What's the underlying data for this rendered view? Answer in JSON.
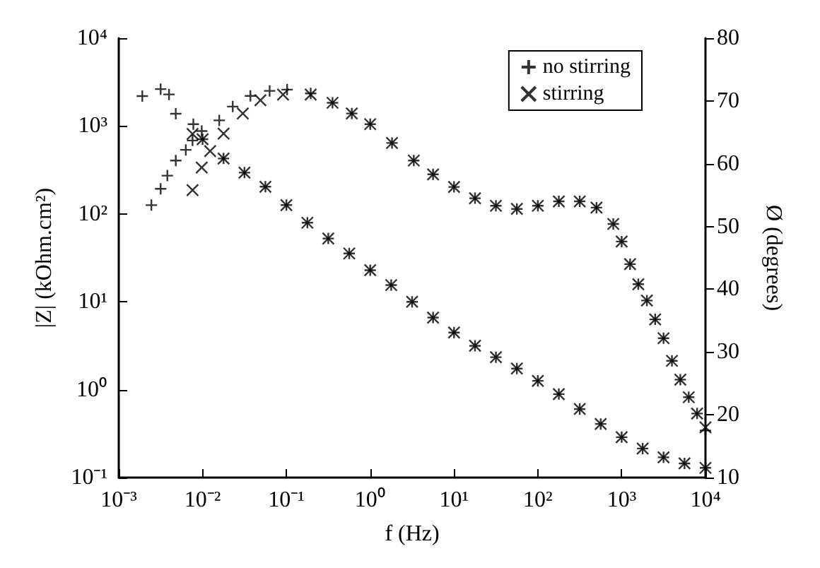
{
  "chart_data": {
    "type": "scatter",
    "xlabel": "f (Hz)",
    "ylabel": "|Z| (kOhm.cm²)",
    "y2label": "Ø (degrees)",
    "log": "xy",
    "grid": false,
    "legend": "top right",
    "xlim": [
      0.001,
      10000
    ],
    "xticks": [
      {
        "value": 0.001,
        "label": "10⁻³"
      },
      {
        "value": 0.01,
        "label": "10⁻²"
      },
      {
        "value": 0.1,
        "label": "10⁻¹"
      },
      {
        "value": 1,
        "label": "10⁰"
      },
      {
        "value": 10,
        "label": "10¹"
      },
      {
        "value": 100,
        "label": "10²"
      },
      {
        "value": 1000,
        "label": "10³"
      },
      {
        "value": 10000,
        "label": "10⁴"
      }
    ],
    "ylim": [
      0.1,
      10000
    ],
    "yticks": [
      {
        "value": 0.1,
        "label": "10⁻¹"
      },
      {
        "value": 1,
        "label": "10⁰"
      },
      {
        "value": 10,
        "label": "10¹"
      },
      {
        "value": 100,
        "label": "10²"
      },
      {
        "value": 1000,
        "label": "10³"
      },
      {
        "value": 10000,
        "label": "10⁴"
      }
    ],
    "y2lim": [
      10,
      80
    ],
    "y2ticks": [
      10,
      20,
      30,
      40,
      50,
      60,
      70,
      80
    ],
    "series": [
      {
        "name": "no stirring",
        "color": "#000000",
        "marker": "plus",
        "x": [
          0.00191,
          0.00316,
          0.00398,
          0.00479,
          0.00776,
          0.01,
          0.0178,
          0.0316,
          0.0562,
          0.1,
          0.178,
          0.316,
          0.562,
          1,
          1.78,
          3.16,
          5.62,
          10,
          17.8,
          31.6,
          56.2,
          100,
          178,
          316,
          562,
          1000,
          1780,
          3160,
          5620,
          10000
        ],
        "values": [
          2190,
          2630,
          2290,
          1380,
          1050,
          708,
          427,
          295,
          204,
          126,
          79.4,
          52.5,
          35.5,
          22.9,
          15.5,
          10,
          6.61,
          4.47,
          3.16,
          2.34,
          1.74,
          1.26,
          0.891,
          0.603,
          0.407,
          0.288,
          0.214,
          0.17,
          0.145,
          0.129
        ]
      },
      {
        "name": "stirring",
        "color": "#000000",
        "marker": "cross",
        "x": [
          0.00759,
          0.01,
          0.0178,
          0.0316,
          0.0562,
          0.1,
          0.178,
          0.316,
          0.562,
          1,
          1.78,
          3.16,
          5.62,
          10,
          17.8,
          31.6,
          56.2,
          100,
          178,
          316,
          562,
          1000,
          1780,
          3160,
          5620,
          10000
        ],
        "values": [
          813,
          708,
          427,
          295,
          204,
          126,
          79.4,
          52.5,
          35.5,
          22.9,
          15.5,
          10,
          6.61,
          4.47,
          3.16,
          2.34,
          1.74,
          1.26,
          0.891,
          0.603,
          0.407,
          0.288,
          0.214,
          0.17,
          0.145,
          0.129
        ]
      },
      {
        "color": "#000000",
        "marker": "plus",
        "axis": "y2",
        "x": [
          0.00245,
          0.00316,
          0.0038,
          0.00479,
          0.00631,
          0.00759,
          0.00977,
          0.0158,
          0.0229,
          0.0372,
          0.0631,
          0.102,
          0.195,
          0.355,
          0.603,
          1,
          1.82,
          3.31,
          5.62,
          10,
          17.8,
          31.6,
          56.2,
          100,
          178,
          316,
          501,
          794,
          1000,
          1260,
          1580,
          2000,
          2510,
          3160,
          3980,
          5010,
          6310,
          7940,
          10000
        ],
        "values": [
          53.4,
          56.0,
          58.1,
          60.5,
          62.2,
          63.7,
          65.2,
          66.9,
          69.1,
          70.8,
          71.6,
          71.8,
          71.2,
          69.7,
          68.0,
          66.3,
          63.3,
          60.5,
          58.3,
          56.3,
          54.5,
          53.3,
          52.8,
          53.3,
          54.0,
          54.0,
          53.0,
          50.4,
          47.6,
          44.0,
          40.8,
          38.2,
          35.2,
          32.2,
          28.6,
          25.6,
          22.8,
          20.2,
          17.5
        ]
      },
      {
        "color": "#000000",
        "marker": "cross",
        "axis": "y2",
        "x": [
          0.00759,
          0.00977,
          0.0123,
          0.0178,
          0.0302,
          0.049,
          0.0912,
          0.195,
          0.355,
          0.603,
          1,
          1.82,
          3.31,
          5.62,
          10,
          17.8,
          31.6,
          56.2,
          100,
          178,
          316,
          501,
          794,
          1000,
          1260,
          1580,
          2000,
          2510,
          3160,
          3980,
          5010,
          6310,
          7940,
          10000
        ],
        "values": [
          55.8,
          59.4,
          62.0,
          64.8,
          68.0,
          70.1,
          71.0,
          71.0,
          69.7,
          68.0,
          66.3,
          63.3,
          60.5,
          58.3,
          56.3,
          54.5,
          53.3,
          52.8,
          53.3,
          54.0,
          54.0,
          53.0,
          50.4,
          47.6,
          44.0,
          40.8,
          38.2,
          35.2,
          32.2,
          28.6,
          25.6,
          22.8,
          20.2,
          18.0
        ]
      }
    ]
  }
}
